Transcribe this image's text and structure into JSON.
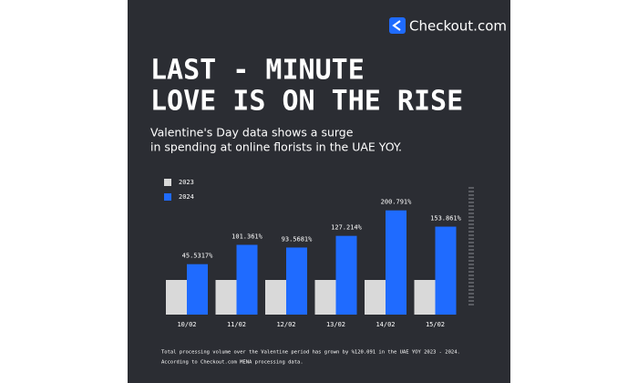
{
  "brand": "Checkout.com",
  "chart_data": {
    "type": "bar",
    "title": [
      "LAST - MINUTE",
      "LOVE IS ON THE RISE"
    ],
    "subtitle": [
      "Valentine's Day data shows a surge",
      "in spending at online florists in the UAE YOY."
    ],
    "categories": [
      "10/02",
      "11/02",
      "12/02",
      "13/02",
      "14/02",
      "15/02"
    ],
    "series": [
      {
        "name": "2023",
        "color": "#d9d9d9",
        "values": [
          0,
          0,
          0,
          0,
          0,
          0
        ]
      },
      {
        "name": "2024",
        "color": "#1f6bff",
        "values": [
          45.5317,
          101.361,
          93.5681,
          127.214,
          200.791,
          153.861
        ],
        "value_labels": [
          "45.5317%",
          "101.361%",
          "93.5681%",
          "127.214%",
          "200.791%",
          "153.861%"
        ]
      }
    ],
    "ylim": [
      -100,
      250
    ],
    "footnote": [
      "Total processing volume over the Valentine period has grown by %120.091 in the UAE YOY 2023 - 2024.",
      "According to Checkout.com MENA processing data."
    ]
  }
}
